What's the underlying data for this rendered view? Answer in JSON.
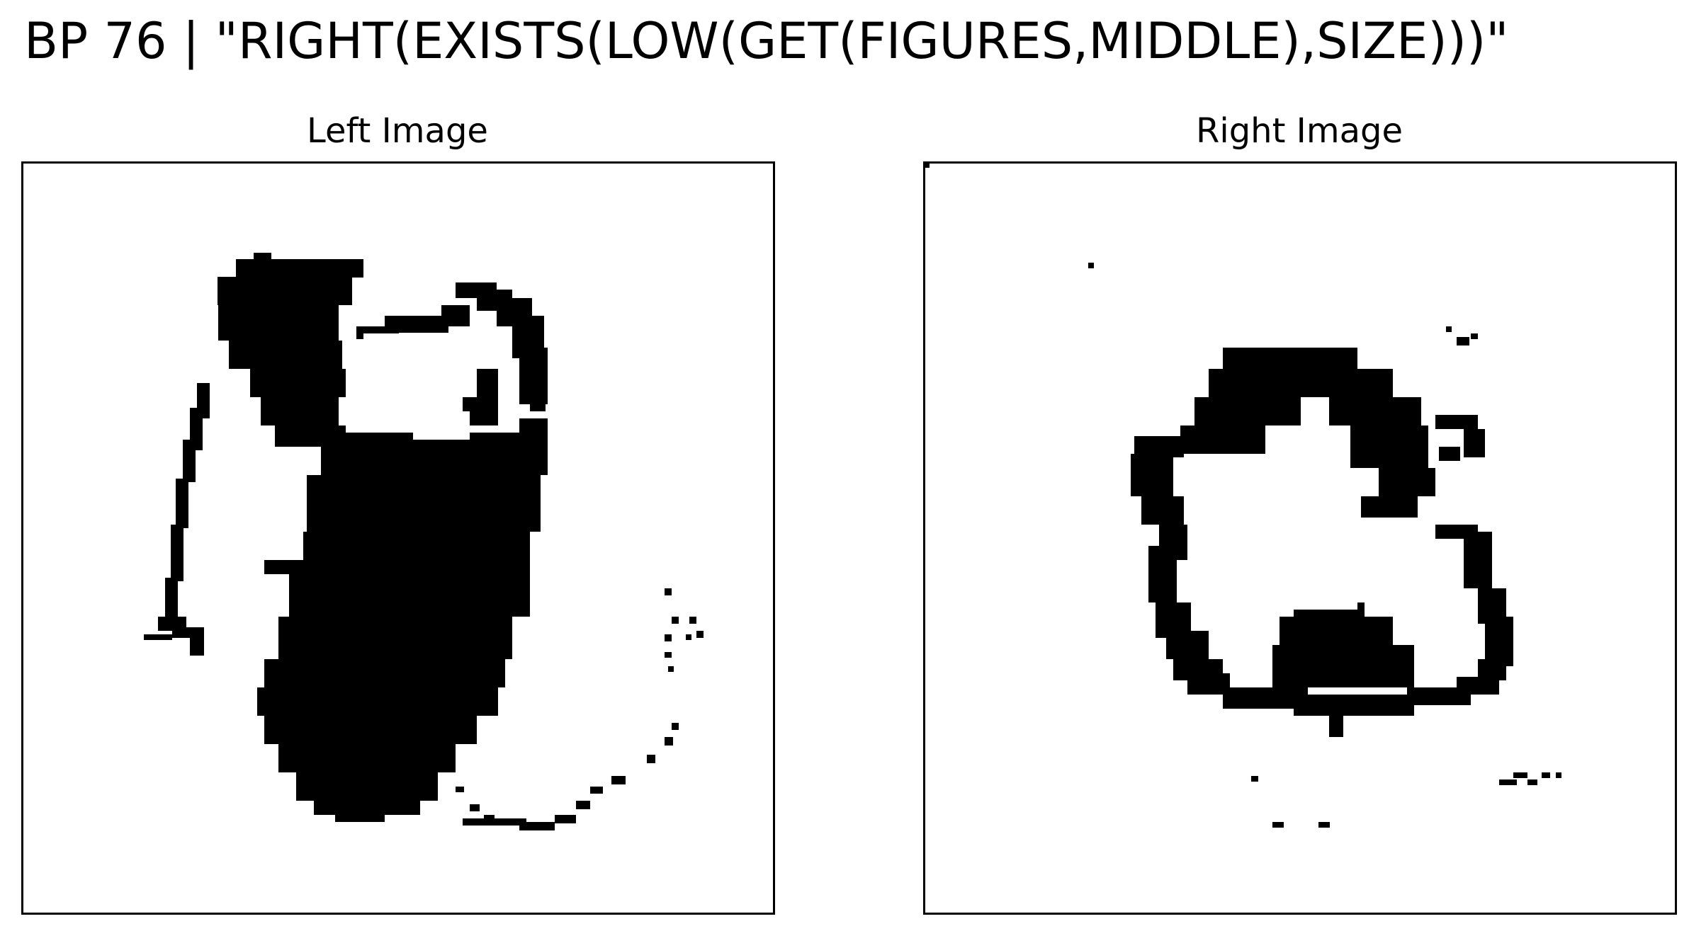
{
  "header": {
    "title": "BP 76 | \"RIGHT(EXISTS(LOW(GET(FIGURES,MIDDLE),SIZE)))\""
  },
  "panels": {
    "left": {
      "label": "Left Image"
    },
    "right": {
      "label": "Right Image"
    }
  },
  "colors": {
    "figure": "#000000",
    "background": "#ffffff",
    "frame": "#000000"
  }
}
